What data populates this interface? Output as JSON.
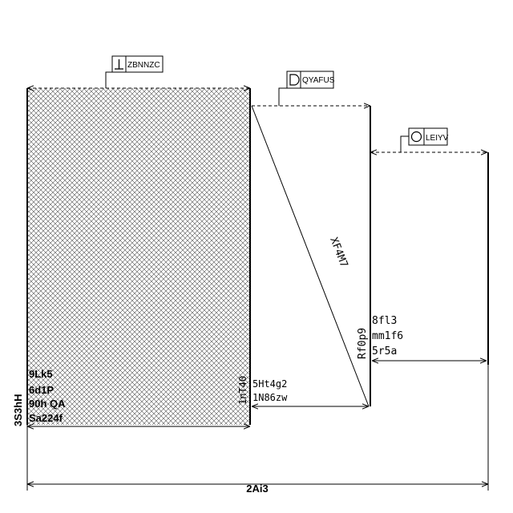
{
  "tags": [
    {
      "symbol": "perpendicularity",
      "label": "ZBNNZC"
    },
    {
      "symbol": "flatness-d",
      "label": "QYAFUS"
    },
    {
      "symbol": "circularity",
      "label": "LEIYV"
    }
  ],
  "left_block_notes": [
    "9Lk5",
    "6d1P",
    "90h  QA",
    "Sa224f"
  ],
  "left_height_dim": "3S3hH",
  "left_inner_dim": "1nT40",
  "bottom_mid_notes": [
    "5Ht4g2",
    "1N86zw"
  ],
  "diagonal_label": "XF4M7",
  "diagonal_lower_label": "Rf0p9",
  "right_notes": [
    "8fl3",
    "mm1f6",
    "5r5a"
  ],
  "overall_width_dim": "2Ai3"
}
